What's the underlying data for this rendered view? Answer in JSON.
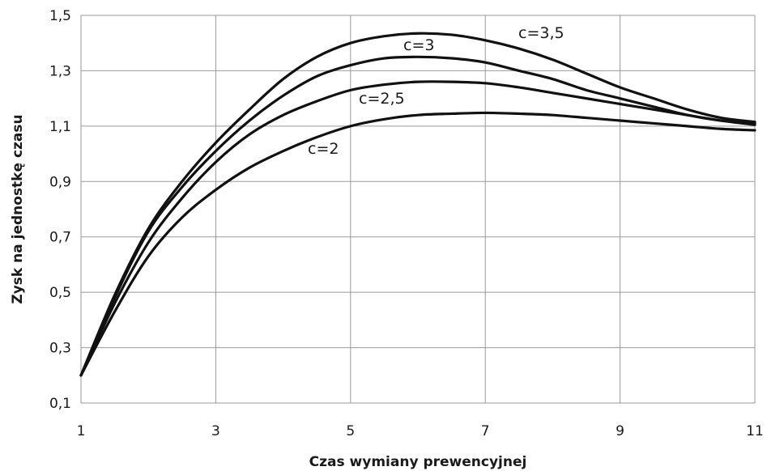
{
  "chart_data": {
    "type": "line",
    "title": "",
    "xlabel": "Czas wymiany prewencyjnej",
    "ylabel": "Zysk na jednostkę czasu",
    "xlim": [
      1,
      11
    ],
    "ylim": [
      0.1,
      1.5
    ],
    "x_ticks": [
      "1",
      "3",
      "5",
      "7",
      "9",
      "11"
    ],
    "y_ticks": [
      "0,1",
      "0,3",
      "0,5",
      "0,7",
      "0,9",
      "1,1",
      "1,3",
      "1,5"
    ],
    "x_tick_values": [
      1,
      3,
      5,
      7,
      9,
      11
    ],
    "y_tick_values": [
      0.1,
      0.3,
      0.5,
      0.7,
      0.9,
      1.1,
      1.3,
      1.5
    ],
    "grid": true,
    "legend": "none",
    "line_color": "#111111",
    "series": [
      {
        "name": "c=2",
        "label": "c=2",
        "x": [
          1,
          1.5,
          2,
          2.5,
          3,
          3.5,
          4,
          4.5,
          5,
          5.5,
          6,
          6.5,
          7,
          7.5,
          8,
          8.5,
          9,
          9.5,
          10,
          10.5,
          11
        ],
        "y": [
          0.2,
          0.43,
          0.63,
          0.77,
          0.87,
          0.95,
          1.01,
          1.06,
          1.1,
          1.125,
          1.14,
          1.145,
          1.148,
          1.145,
          1.14,
          1.13,
          1.12,
          1.11,
          1.1,
          1.09,
          1.085
        ]
      },
      {
        "name": "c=2,5",
        "label": "c=2,5",
        "x": [
          1,
          1.5,
          2,
          2.5,
          3,
          3.5,
          4,
          4.5,
          5,
          5.5,
          6,
          6.5,
          7,
          7.5,
          8,
          8.5,
          9,
          9.5,
          10,
          10.5,
          11
        ],
        "y": [
          0.2,
          0.46,
          0.68,
          0.84,
          0.97,
          1.07,
          1.14,
          1.19,
          1.23,
          1.25,
          1.26,
          1.26,
          1.255,
          1.24,
          1.22,
          1.2,
          1.18,
          1.16,
          1.14,
          1.12,
          1.105
        ]
      },
      {
        "name": "c=3",
        "label": "c=3",
        "x": [
          1,
          1.5,
          2,
          2.5,
          3,
          3.5,
          4,
          4.5,
          5,
          5.5,
          6,
          6.5,
          7,
          7.5,
          8,
          8.5,
          9,
          9.5,
          10,
          10.5,
          11
        ],
        "y": [
          0.2,
          0.48,
          0.72,
          0.88,
          1.01,
          1.12,
          1.21,
          1.28,
          1.32,
          1.345,
          1.35,
          1.345,
          1.33,
          1.3,
          1.27,
          1.23,
          1.2,
          1.17,
          1.14,
          1.12,
          1.11
        ]
      },
      {
        "name": "c=3,5",
        "label": "c=3,5",
        "x": [
          1,
          1.5,
          2,
          2.5,
          3,
          3.5,
          4,
          4.5,
          5,
          5.5,
          6,
          6.5,
          7,
          7.5,
          8,
          8.5,
          9,
          9.5,
          10,
          10.5,
          11
        ],
        "y": [
          0.2,
          0.49,
          0.73,
          0.9,
          1.04,
          1.16,
          1.27,
          1.35,
          1.4,
          1.425,
          1.435,
          1.43,
          1.41,
          1.38,
          1.34,
          1.29,
          1.24,
          1.2,
          1.16,
          1.13,
          1.115
        ]
      }
    ]
  }
}
